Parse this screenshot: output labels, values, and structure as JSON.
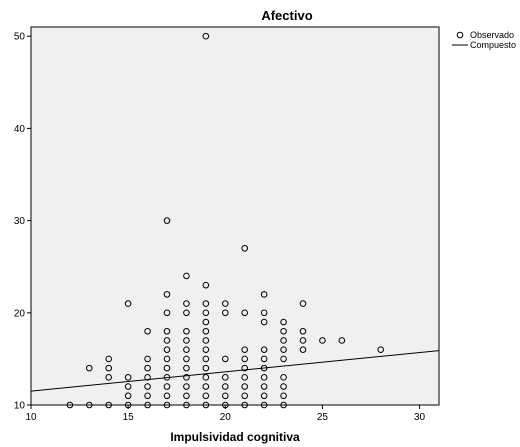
{
  "chart_data": {
    "type": "scatter",
    "title": "Afectivo",
    "xlabel": "Impulsividad cognitiva",
    "ylabel": "",
    "xlim": [
      10,
      31
    ],
    "ylim": [
      10,
      51
    ],
    "x_ticks": [
      "10",
      "15",
      "20",
      "25",
      "30"
    ],
    "y_ticks": [
      "10",
      "20",
      "30",
      "40",
      "50"
    ],
    "grid": false,
    "legend_position": "top-right",
    "plot_background": "#f0f0f0",
    "series": [
      {
        "name": "Observado",
        "marker": "open-circle",
        "color": "#000000",
        "points": [
          [
            12,
            10
          ],
          [
            13,
            10
          ],
          [
            13,
            14
          ],
          [
            14,
            10
          ],
          [
            14,
            13
          ],
          [
            14,
            14
          ],
          [
            14,
            15
          ],
          [
            15,
            10
          ],
          [
            15,
            11
          ],
          [
            15,
            12
          ],
          [
            15,
            13
          ],
          [
            15,
            21
          ],
          [
            16,
            10
          ],
          [
            16,
            11
          ],
          [
            16,
            12
          ],
          [
            16,
            13
          ],
          [
            16,
            14
          ],
          [
            16,
            15
          ],
          [
            16,
            18
          ],
          [
            17,
            10
          ],
          [
            17,
            11
          ],
          [
            17,
            12
          ],
          [
            17,
            13
          ],
          [
            17,
            14
          ],
          [
            17,
            15
          ],
          [
            17,
            16
          ],
          [
            17,
            17
          ],
          [
            17,
            18
          ],
          [
            17,
            20
          ],
          [
            17,
            22
          ],
          [
            17,
            30
          ],
          [
            18,
            10
          ],
          [
            18,
            11
          ],
          [
            18,
            12
          ],
          [
            18,
            13
          ],
          [
            18,
            14
          ],
          [
            18,
            15
          ],
          [
            18,
            16
          ],
          [
            18,
            17
          ],
          [
            18,
            18
          ],
          [
            18,
            20
          ],
          [
            18,
            21
          ],
          [
            18,
            24
          ],
          [
            19,
            10
          ],
          [
            19,
            11
          ],
          [
            19,
            12
          ],
          [
            19,
            13
          ],
          [
            19,
            14
          ],
          [
            19,
            15
          ],
          [
            19,
            16
          ],
          [
            19,
            17
          ],
          [
            19,
            18
          ],
          [
            19,
            19
          ],
          [
            19,
            20
          ],
          [
            19,
            21
          ],
          [
            19,
            23
          ],
          [
            19,
            50
          ],
          [
            20,
            10
          ],
          [
            20,
            11
          ],
          [
            20,
            12
          ],
          [
            20,
            13
          ],
          [
            20,
            15
          ],
          [
            20,
            20
          ],
          [
            20,
            21
          ],
          [
            21,
            10
          ],
          [
            21,
            11
          ],
          [
            21,
            12
          ],
          [
            21,
            13
          ],
          [
            21,
            14
          ],
          [
            21,
            15
          ],
          [
            21,
            16
          ],
          [
            21,
            20
          ],
          [
            21,
            27
          ],
          [
            22,
            10
          ],
          [
            22,
            11
          ],
          [
            22,
            12
          ],
          [
            22,
            13
          ],
          [
            22,
            14
          ],
          [
            22,
            15
          ],
          [
            22,
            16
          ],
          [
            22,
            19
          ],
          [
            22,
            20
          ],
          [
            22,
            22
          ],
          [
            23,
            10
          ],
          [
            23,
            11
          ],
          [
            23,
            12
          ],
          [
            23,
            13
          ],
          [
            23,
            15
          ],
          [
            23,
            16
          ],
          [
            23,
            17
          ],
          [
            23,
            18
          ],
          [
            23,
            19
          ],
          [
            24,
            16
          ],
          [
            24,
            17
          ],
          [
            24,
            18
          ],
          [
            24,
            21
          ],
          [
            25,
            17
          ],
          [
            26,
            17
          ],
          [
            28,
            16
          ]
        ]
      },
      {
        "name": "Compuesto",
        "type": "line",
        "color": "#000000",
        "x": [
          10,
          31
        ],
        "y": [
          11.5,
          15.9
        ]
      }
    ]
  }
}
